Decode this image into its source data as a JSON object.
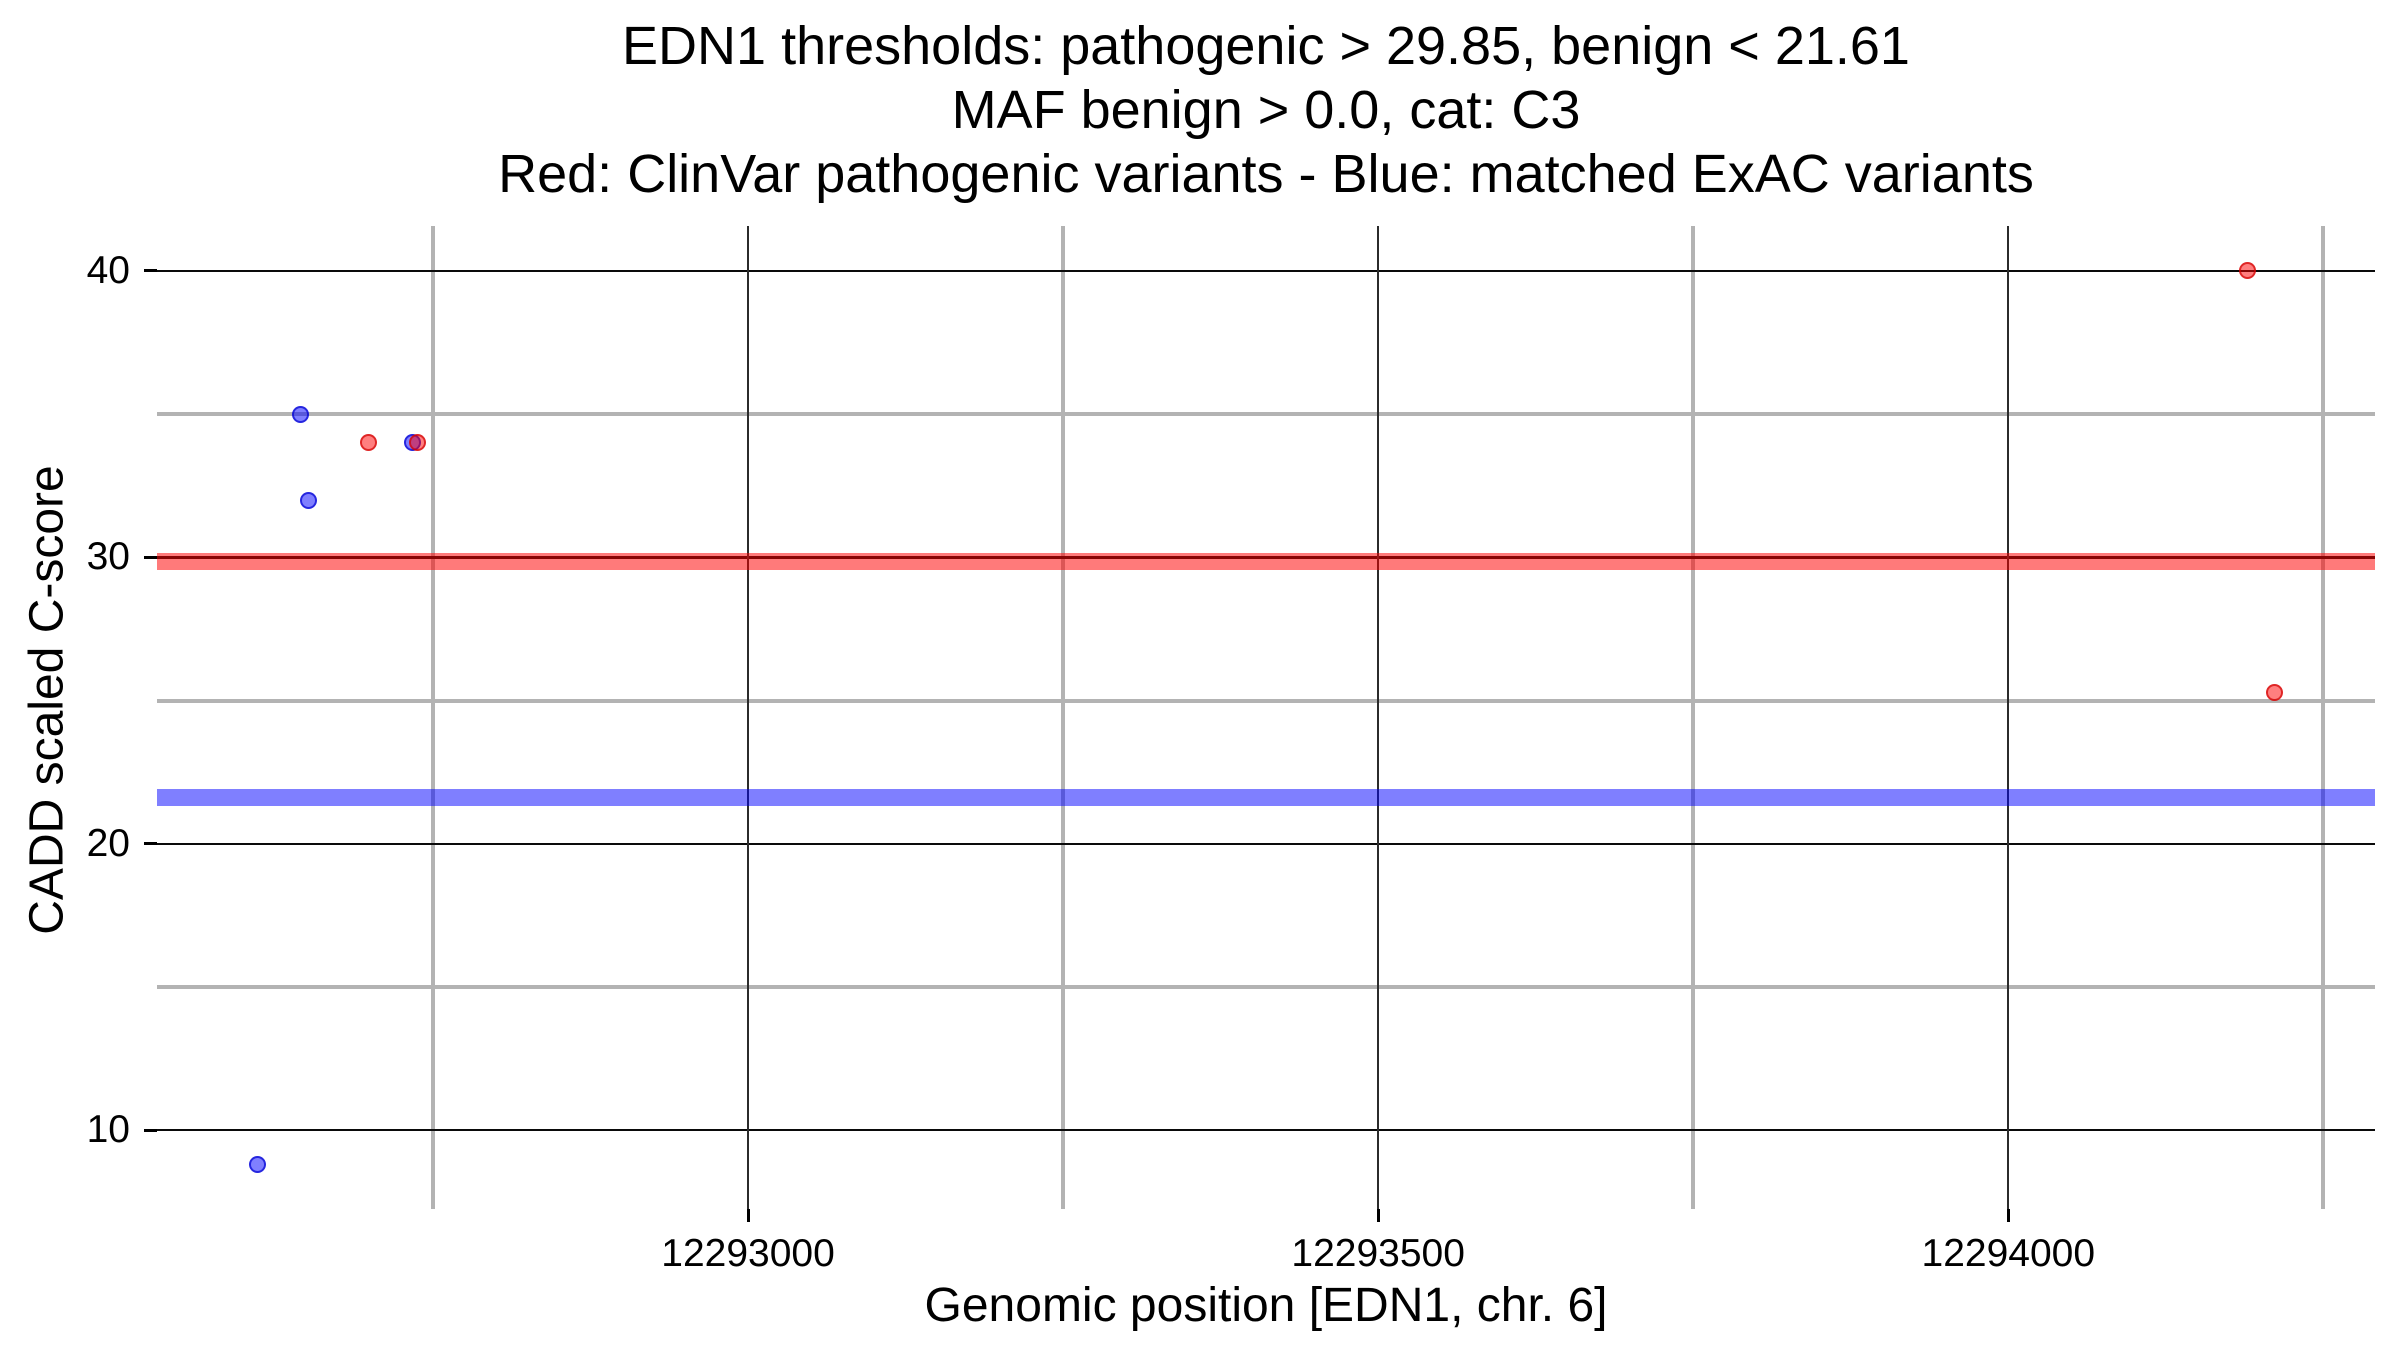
{
  "title": {
    "line1": "EDN1 thresholds: pathogenic > 29.85, benign < 21.61",
    "line2": "MAF benign > 0.0, cat: C3",
    "line3": "Red: ClinVar pathogenic variants - Blue: matched ExAC variants"
  },
  "colors": {
    "pathogenic_red": "#FF0000",
    "benign_blue": "#0000FF",
    "minor_grid": "#B3B3B3",
    "major_grid": "#000000",
    "background": "#FFFFFF"
  },
  "chart_data": {
    "type": "scatter",
    "title": "EDN1 thresholds: pathogenic > 29.85, benign < 21.61 | MAF benign > 0.0, cat: C3 | Red: ClinVar pathogenic variants - Blue: matched ExAC variants",
    "gene": "EDN1",
    "category": "C3",
    "xlabel": "Genomic position [EDN1, chr. 6]",
    "ylabel": "CADD scaled C-score",
    "xlim": [
      12292531,
      12294291
    ],
    "ylim": [
      7.25,
      41.57
    ],
    "x_major_ticks": [
      12293000,
      12293500,
      12294000
    ],
    "x_minor_gridlines": [
      12292750,
      12293250,
      12293750,
      12294250
    ],
    "y_major_ticks": [
      10,
      20,
      30,
      40
    ],
    "y_minor_gridlines": [
      15,
      25,
      35
    ],
    "grid": true,
    "legend_position": "none",
    "thresholds": [
      {
        "name": "pathogenic",
        "rule": "pathogenic > 29.85",
        "value": 29.85,
        "color": "red"
      },
      {
        "name": "benign",
        "rule": "benign < 21.61",
        "value": 21.61,
        "color": "blue"
      }
    ],
    "series": [
      {
        "name": "ClinVar pathogenic variants",
        "color": "red",
        "points": [
          {
            "x": 12292699,
            "y": 34.0
          },
          {
            "x": 12292738,
            "y": 34.0
          },
          {
            "x": 12294190,
            "y": 40.0
          },
          {
            "x": 12294211,
            "y": 25.3
          }
        ]
      },
      {
        "name": "matched ExAC variants",
        "color": "blue",
        "points": [
          {
            "x": 12292611,
            "y": 8.8
          },
          {
            "x": 12292645,
            "y": 35.0
          },
          {
            "x": 12292651,
            "y": 32.0
          },
          {
            "x": 12292734,
            "y": 34.0
          }
        ]
      }
    ]
  }
}
